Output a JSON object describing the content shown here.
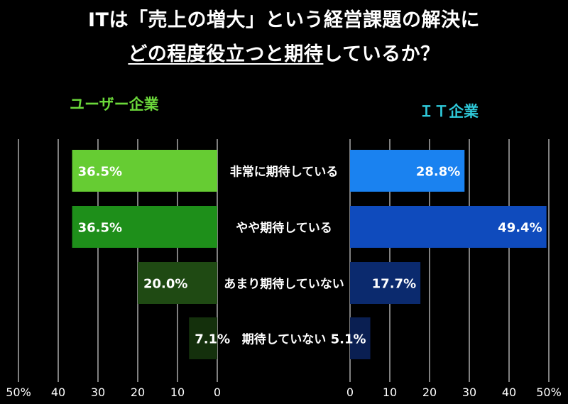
{
  "title": {
    "line1": "ITは「売上の増大」という経営課題の解決に",
    "line2_underlined": "どの程度役立つと期待",
    "line2_rest": "しているか？"
  },
  "colors": {
    "background": "#000000",
    "text": "#ffffff",
    "user_label": "#6bd83a",
    "it_label": "#2ec8d8",
    "gridline": "#ffffff",
    "user_bars": [
      "#66cc33",
      "#1e8f1a",
      "#1f4a13",
      "#14300c"
    ],
    "it_bars": [
      "#1a82f0",
      "#0f4bbd",
      "#0b2a6e",
      "#0a1f52"
    ]
  },
  "chart_data": {
    "type": "bar",
    "orientation": "horizontal",
    "layout": "butterfly",
    "categories": [
      "非常に期待している",
      "やや期待している",
      "あまり期待していない",
      "期待していない"
    ],
    "series": [
      {
        "name": "ユーザー企業",
        "side": "left",
        "values": [
          36.5,
          36.5,
          20.0,
          7.1
        ],
        "labels": [
          "36.5%",
          "36.5%",
          "20.0%",
          "7.1%"
        ]
      },
      {
        "name": "ＩＴ企業",
        "side": "right",
        "values": [
          28.8,
          49.4,
          17.7,
          5.1
        ],
        "labels": [
          "28.8%",
          "49.4%",
          "17.7%",
          "5.1%"
        ]
      }
    ],
    "left_axis": {
      "range": [
        0,
        50
      ],
      "reversed": true,
      "ticks": [
        50,
        40,
        30,
        20,
        10,
        0
      ],
      "tick_labels": [
        "50%",
        "40",
        "30",
        "20",
        "10",
        "0"
      ]
    },
    "right_axis": {
      "range": [
        0,
        50
      ],
      "ticks": [
        0,
        10,
        20,
        30,
        40,
        50
      ],
      "tick_labels": [
        "0",
        "10",
        "20",
        "30",
        "40",
        "50%"
      ]
    },
    "grid": true,
    "legend": "none"
  }
}
